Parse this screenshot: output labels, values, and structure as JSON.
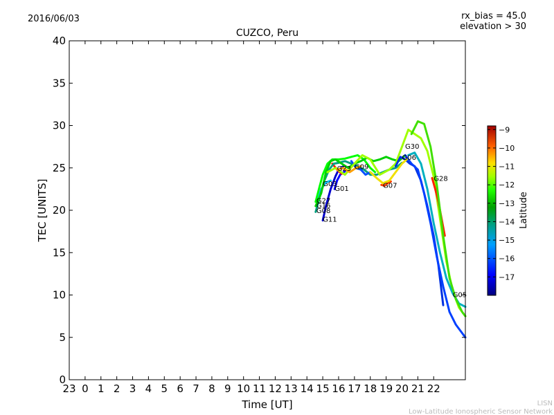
{
  "date_label": "2016/06/03",
  "info": {
    "rx_bias": "rx_bias = 45.0",
    "elevation": "elevation > 30"
  },
  "footer": {
    "short": "LISN",
    "long": "Low-Latitude Ionospheric Sensor Network"
  },
  "chart_data": {
    "type": "line",
    "title": "CUZCO, Peru",
    "xlabel": "Time [UT]",
    "ylabel": "TEC [UNITS]",
    "xlim": [
      -1,
      24
    ],
    "ylim": [
      0,
      40
    ],
    "xticks": [
      -1,
      0,
      1,
      2,
      3,
      4,
      5,
      6,
      7,
      8,
      9,
      10,
      11,
      12,
      13,
      14,
      15,
      16,
      17,
      18,
      19,
      20,
      21,
      22
    ],
    "xtick_labels": [
      "23",
      "0",
      "1",
      "2",
      "3",
      "4",
      "5",
      "6",
      "7",
      "8",
      "9",
      "10",
      "11",
      "12",
      "13",
      "14",
      "15",
      "16",
      "17",
      "18",
      "19",
      "20",
      "21",
      "22"
    ],
    "yticks": [
      0,
      5,
      10,
      15,
      20,
      25,
      30,
      35,
      40
    ],
    "ytick_labels": [
      "0",
      "5",
      "10",
      "15",
      "20",
      "25",
      "30",
      "35",
      "40"
    ],
    "grid": false,
    "colorbar": {
      "label": "Latitude",
      "min": -18,
      "max": -8.8,
      "ticks": [
        -9,
        -10,
        -11,
        -12,
        -13,
        -14,
        -15,
        -16,
        -17
      ],
      "tick_labels": [
        "−9",
        "−10",
        "−11",
        "−12",
        "−13",
        "−14",
        "−15",
        "−16",
        "−17"
      ]
    },
    "series": [
      {
        "name": "G11",
        "label_at": [
          15.0,
          19.0
        ],
        "color": "#0000cc",
        "x": [
          15.0,
          15.2,
          15.5,
          15.8,
          16.0,
          16.3
        ],
        "y": [
          18.8,
          20.5,
          22.5,
          24.0,
          24.8,
          25.2
        ]
      },
      {
        "name": "G01",
        "label_at": [
          15.75,
          22.6
        ],
        "color": "#0000ff",
        "x": [
          15.75,
          15.9,
          16.1,
          16.4
        ],
        "y": [
          22.5,
          23.5,
          24.2,
          24.6
        ]
      },
      {
        "name": "G23",
        "label_at": [
          15.9,
          25.0
        ],
        "color": "#ff2000",
        "x": [
          15.6,
          15.9,
          16.2
        ],
        "y": [
          25.5,
          24.8,
          24.3
        ]
      },
      {
        "name": "G03",
        "label_at": [
          15.0,
          23.2
        ],
        "color": "#00c0ff",
        "x": [
          14.6,
          14.9,
          15.2,
          15.5
        ],
        "y": [
          20.5,
          22.5,
          23.3,
          23.5
        ]
      },
      {
        "name": "G08",
        "label_at": [
          14.6,
          20.0
        ],
        "color": "#00a080",
        "x": [
          14.55,
          14.8,
          15.1,
          15.4,
          15.7,
          16.0,
          16.4,
          16.8,
          17.2,
          17.6,
          18.0,
          18.4,
          18.8,
          19.2,
          19.6,
          20.0
        ],
        "y": [
          19.8,
          21.5,
          23.5,
          24.8,
          25.5,
          25.6,
          25.8,
          25.5,
          25.2,
          24.8,
          24.2,
          24.2,
          24.5,
          24.8,
          25.0,
          25.6
        ]
      },
      {
        "name": "G27",
        "label_at": [
          14.6,
          21.2
        ],
        "color": "#00ff00",
        "x": [
          14.55,
          14.8,
          15.0,
          15.3,
          15.6,
          16.0,
          16.4,
          16.8,
          17.2,
          17.6,
          18.0,
          18.3
        ],
        "y": [
          21.0,
          22.8,
          24.2,
          25.5,
          26.0,
          26.0,
          26.1,
          26.3,
          26.5,
          26.0,
          25.0,
          24.5
        ]
      },
      {
        "name": "G16",
        "label_at": [
          14.6,
          20.6
        ],
        "color": "#00d000",
        "x": [
          14.55,
          14.9,
          15.2,
          15.5,
          15.8,
          16.2,
          16.6,
          17.0,
          17.4,
          17.8,
          18.2,
          18.6,
          19.0,
          19.4,
          19.8,
          20.2
        ],
        "y": [
          20.5,
          22.0,
          24.5,
          25.8,
          26.0,
          25.5,
          25.0,
          25.5,
          25.8,
          26.2,
          25.8,
          26.0,
          26.3,
          26.0,
          25.8,
          26.5
        ]
      },
      {
        "name": "G09",
        "label_at": [
          17.0,
          25.2
        ],
        "color": "#0050ff",
        "x": [
          16.8,
          17.1,
          17.4,
          17.7,
          18.0,
          18.3
        ],
        "y": [
          25.8,
          25.0,
          24.8,
          24.2,
          24.5,
          24.0
        ]
      },
      {
        "name": "G07",
        "label_at": [
          18.8,
          23.0
        ],
        "color": "#ff4000",
        "x": [
          18.7,
          18.9,
          19.1,
          19.3
        ],
        "y": [
          23.0,
          22.9,
          23.2,
          23.4
        ]
      },
      {
        "name": "G30",
        "label_at": [
          20.2,
          27.6
        ],
        "color": "#a0ff00",
        "x": [
          15.3,
          15.8,
          16.4,
          17.0,
          17.5,
          18.0,
          18.6,
          19.2,
          19.6,
          20.0,
          20.4,
          20.8,
          21.2,
          21.6,
          22.0,
          22.4,
          22.8,
          23.2,
          23.6,
          24.0
        ],
        "y": [
          24.5,
          25.0,
          24.2,
          25.5,
          26.5,
          26.0,
          24.2,
          24.8,
          25.5,
          27.5,
          29.5,
          29.0,
          28.5,
          27.0,
          24.0,
          19.0,
          14.0,
          10.5,
          8.5,
          7.5
        ]
      },
      {
        "name": "G06",
        "label_at": [
          20.0,
          26.3
        ],
        "color": "#0030e0",
        "x": [
          19.6,
          19.9,
          20.2,
          20.5,
          20.8,
          21.2,
          21.6,
          22.0,
          22.3,
          22.6
        ],
        "y": [
          25.2,
          26.3,
          26.0,
          25.5,
          25.2,
          23.5,
          20.5,
          17.0,
          13.5,
          8.8
        ]
      },
      {
        "name": "G28",
        "label_at": [
          22.0,
          23.8
        ],
        "color": "#ff2000",
        "x": [
          21.9,
          22.1,
          22.3,
          22.5,
          22.7
        ],
        "y": [
          23.8,
          22.5,
          21.0,
          19.0,
          17.0
        ]
      },
      {
        "name": "G05",
        "label_at": [
          23.2,
          10.1
        ],
        "color": "#00b0c0",
        "x": [
          20.4,
          20.8,
          21.2,
          21.6,
          22.0,
          22.4,
          22.8,
          23.2,
          23.6,
          24.0
        ],
        "y": [
          26.5,
          26.8,
          25.5,
          22.5,
          18.5,
          15.0,
          12.0,
          10.2,
          9.0,
          8.6
        ]
      },
      {
        "name": "G-bright",
        "label_at": null,
        "color": "#40e000",
        "x": [
          20.6,
          21.0,
          21.4,
          21.8,
          22.2,
          22.6,
          23.0,
          23.4,
          23.8,
          24.0
        ],
        "y": [
          29.0,
          30.5,
          30.2,
          27.5,
          23.0,
          17.0,
          12.0,
          9.5,
          8.0,
          7.5
        ]
      },
      {
        "name": "G-dark",
        "label_at": null,
        "color": "#0040ff",
        "x": [
          20.2,
          20.6,
          21.0,
          21.4,
          21.8,
          22.2,
          22.6,
          23.0,
          23.4,
          23.8,
          24.0
        ],
        "y": [
          26.5,
          25.5,
          24.8,
          22.0,
          18.5,
          14.5,
          11.0,
          8.0,
          6.5,
          5.5,
          5.0
        ]
      },
      {
        "name": "G-yellow",
        "label_at": null,
        "color": "#f0e000",
        "x": [
          18.0,
          18.4,
          18.8,
          19.2,
          19.6,
          20.0,
          20.3
        ],
        "y": [
          24.5,
          23.8,
          23.2,
          23.5,
          24.5,
          25.5,
          26.0
        ]
      },
      {
        "name": "G-orange",
        "label_at": null,
        "color": "#ffa000",
        "x": [
          15.9,
          16.3,
          16.7,
          17.1,
          17.4
        ],
        "y": [
          24.8,
          25.0,
          24.5,
          25.0,
          25.2
        ]
      }
    ]
  }
}
